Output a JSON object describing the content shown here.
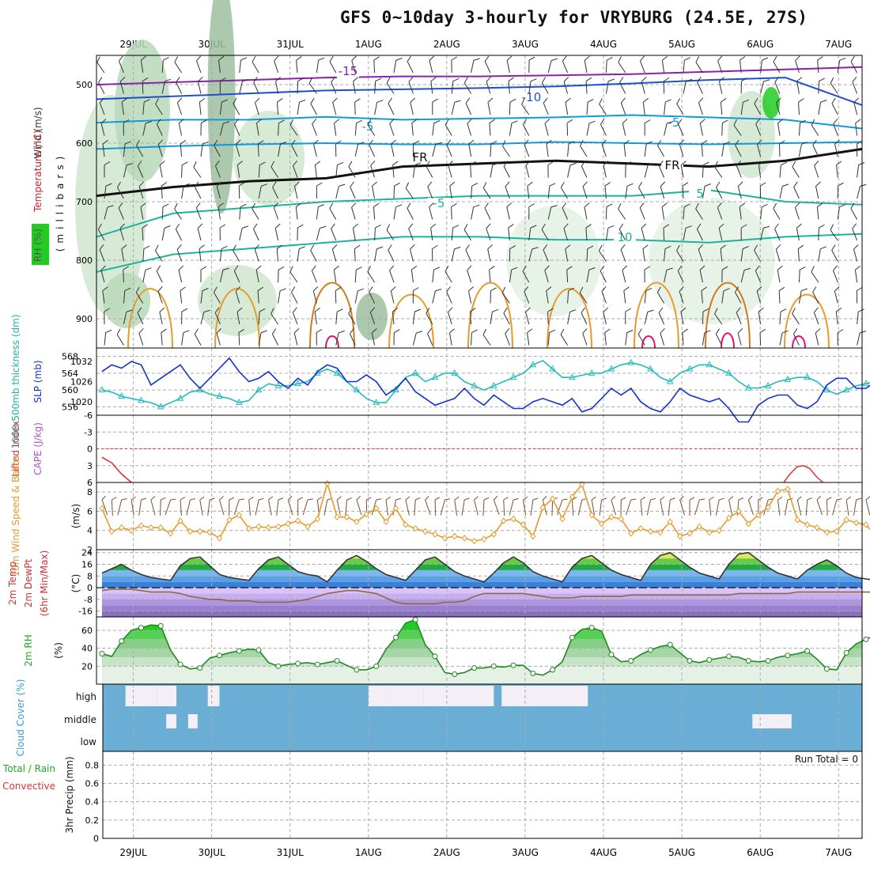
{
  "title": "GFS 0~10day 3-hourly for VRYBURG (24.5E, 27S)",
  "colors": {
    "grid": "#aaaaaa",
    "slp": "#1133cc",
    "thick": "#22bbbb",
    "cape_zero": "#dd3333",
    "wind10": "#e89a2a",
    "barb": "#7a5030",
    "rh2m": "#22aa22",
    "cloud": "#6aaed6",
    "cloud_gap": "#f4eef6",
    "upper_barb": "#333333"
  },
  "chart_data": {
    "dates": [
      "29JUL",
      "30JUL",
      "31JUL",
      "1AUG",
      "2AUG",
      "3AUG",
      "4AUG",
      "5AUG",
      "6AUG",
      "7AUG"
    ],
    "time_range_days": [
      -0.47,
      9.3
    ],
    "panels": [
      {
        "id": "upper_air",
        "type": "contour",
        "ylabel_parts": [
          "Wind (m/s)",
          "Temperature (°C)",
          "RH (%)"
        ],
        "ylabel_colors": [
          "#333333",
          "#cc2222",
          "#22aa22"
        ],
        "yaxis_title": "(millibars)",
        "yticks": [
          500,
          600,
          700,
          800,
          900
        ],
        "ylim": [
          450,
          950
        ],
        "freezing_label": "FR",
        "isotherm_labels": [
          "-15",
          "-10",
          "-5",
          "-5",
          "-5",
          "5",
          "10",
          "FR",
          "FR"
        ],
        "isotherms": [
          {
            "name": "-15",
            "color": "#8822aa",
            "p": [
              500,
              496,
              492,
              488,
              486,
              486,
              484,
              482,
              478,
              474,
              470
            ]
          },
          {
            "name": "-10",
            "color": "#1e4fd0",
            "p": [
              525,
              520,
              515,
              510,
              508,
              506,
              503,
              498,
              492,
              488,
              535
            ]
          },
          {
            "name": "-5",
            "color": "#1199dd",
            "p": [
              565,
              560,
              560,
              555,
              560,
              558,
              556,
              552,
              556,
              560,
              575
            ]
          },
          {
            "name": "-5b",
            "color": "#1199dd",
            "p": [
              610,
              605,
              602,
              600,
              602,
              602,
              598,
              600,
              602,
              600,
              598
            ]
          },
          {
            "name": "FR",
            "color": "#111111",
            "p": [
              690,
              675,
              665,
              660,
              640,
              635,
              630,
              635,
              640,
              630,
              610
            ]
          },
          {
            "name": "5",
            "color": "#1cb3a0",
            "p": [
              760,
              720,
              710,
              700,
              695,
              690,
              690,
              690,
              680,
              700,
              705
            ]
          },
          {
            "name": "10",
            "color": "#1cb3a0",
            "p": [
              820,
              790,
              780,
              770,
              760,
              760,
              765,
              765,
              770,
              760,
              755
            ]
          }
        ]
      },
      {
        "id": "slp_thickness",
        "type": "line",
        "ylabel_left": "1000-500mb thickness (dm)",
        "ylabel_right": "SLP (mb)",
        "yticks_left": [
          556,
          560,
          564,
          568
        ],
        "yticks_right": [
          1020,
          1026,
          1032
        ],
        "ylim_left": [
          554,
          570
        ],
        "ylim_right": [
          1016,
          1036
        ],
        "series": [
          {
            "name": "SLP (mb)",
            "axis": "right",
            "color": "#1133cc",
            "values": [
              1029,
              1031,
              1030,
              1032,
              1031,
              1025,
              1027,
              1029,
              1031,
              1027,
              1024,
              1027,
              1030,
              1033,
              1029,
              1026,
              1027,
              1029,
              1026,
              1024,
              1027,
              1025,
              1029,
              1031,
              1030,
              1026,
              1026,
              1028,
              1026,
              1022,
              1024,
              1027,
              1023,
              1021,
              1019,
              1020,
              1021,
              1024,
              1021,
              1019,
              1022,
              1020,
              1018,
              1018,
              1020,
              1021,
              1020,
              1019,
              1021,
              1017,
              1018,
              1021,
              1024,
              1022,
              1024,
              1020,
              1018,
              1017,
              1020,
              1024,
              1022,
              1021,
              1020,
              1021,
              1018,
              1014,
              1014,
              1019,
              1021,
              1022,
              1022,
              1019,
              1018,
              1020,
              1025,
              1027,
              1027,
              1024,
              1024,
              1026,
              1025
            ]
          },
          {
            "name": "1000-500mb Thickness (dm)",
            "axis": "left",
            "color": "#22bbbb",
            "values": [
              560,
              559.5,
              558.5,
              558,
              557.5,
              557,
              556,
              557,
              558,
              559.5,
              560,
              559,
              558.5,
              558,
              557,
              557.5,
              560,
              561.5,
              561,
              561,
              561.5,
              562,
              564,
              565,
              564,
              562,
              560,
              558,
              557,
              557,
              560,
              563,
              564,
              562,
              563,
              564,
              564,
              562,
              561,
              560,
              561,
              562,
              563,
              564,
              566,
              567,
              565,
              563,
              563,
              563.5,
              564,
              564,
              565,
              566,
              566.5,
              566,
              565,
              563,
              562,
              564,
              565,
              566,
              566,
              565,
              564,
              562,
              560.5,
              560.5,
              561,
              562,
              562.5,
              563,
              563,
              562,
              560,
              559,
              560,
              561,
              561.5,
              562,
              562.5
            ]
          }
        ]
      },
      {
        "id": "lifted_index_cape",
        "type": "line",
        "ylabel_left": "Lifted Index",
        "ylabel_right": "CAPE (J/kg)",
        "yticks": [
          -6,
          -3,
          0,
          3,
          6
        ],
        "ylim": [
          -6,
          6
        ],
        "zero_line": 0,
        "series": [
          {
            "name": "Lifted Index",
            "color": "#cc3333",
            "values": [
              1.5,
              2.5,
              4.5,
              6,
              null,
              null,
              null,
              null,
              null,
              null,
              null,
              null,
              null,
              null,
              null,
              null,
              null,
              null,
              null,
              null,
              null,
              null,
              null,
              null,
              null,
              null,
              null,
              null,
              null,
              null,
              null,
              null,
              null,
              null,
              null,
              null,
              null,
              null,
              null,
              null,
              null,
              null,
              null,
              null,
              null,
              null,
              null,
              null,
              null,
              null,
              null,
              null,
              null,
              null,
              null,
              null,
              null,
              null,
              null,
              null,
              null,
              null,
              null,
              null,
              null,
              null,
              null,
              null,
              null,
              null,
              null,
              null,
              null,
              null,
              null,
              null,
              null,
              null,
              null,
              null,
              null
            ]
          },
          {
            "name": "Lifted Index (6AUG)",
            "color": "#cc3333",
            "points": [
              [
                8.3,
                6
              ],
              [
                8.38,
                4.5
              ],
              [
                8.47,
                3.2
              ],
              [
                8.55,
                3.0
              ],
              [
                8.63,
                3.5
              ],
              [
                8.72,
                5.0
              ],
              [
                8.8,
                6
              ]
            ]
          }
        ]
      },
      {
        "id": "wind10m",
        "type": "line",
        "ylabel_left": "10m Wind Speed & Barbs",
        "ylabel_right": "(m/s)",
        "yticks": [
          2,
          4,
          6,
          8
        ],
        "ylim": [
          2,
          9
        ],
        "series": [
          {
            "name": "10m Wind Speed (m/s)",
            "color": "#e89a2a",
            "values": [
              6.3,
              3.9,
              4.3,
              4.0,
              4.5,
              4.3,
              4.3,
              3.7,
              5.0,
              3.9,
              3.9,
              3.8,
              3.2,
              5.1,
              5.6,
              4.2,
              4.4,
              4.3,
              4.4,
              4.7,
              5.0,
              4.4,
              5.2,
              8.9,
              5.4,
              5.4,
              4.9,
              5.7,
              6.3,
              4.9,
              6.3,
              4.6,
              4.2,
              3.9,
              3.6,
              3.2,
              3.4,
              3.2,
              2.9,
              3.1,
              3.6,
              5.0,
              5.2,
              4.6,
              3.4,
              6.4,
              7.3,
              5.2,
              7.5,
              8.8,
              5.6,
              4.7,
              5.4,
              5.2,
              3.7,
              4.2,
              3.9,
              3.8,
              4.9,
              3.4,
              3.7,
              4.4,
              3.8,
              4.0,
              5.3,
              6.0,
              4.7,
              5.6,
              6.4,
              8.1,
              8.3,
              5.1,
              4.6,
              4.3,
              3.8,
              3.9,
              5.1,
              4.8,
              4.6,
              3.4,
              2.8
            ]
          }
        ]
      },
      {
        "id": "temp2m",
        "type": "area",
        "ylabel_parts": [
          "2m Temp",
          "2m DewPt",
          "(6hr Min/Max)"
        ],
        "ylabel_unit": "(°C)",
        "yticks": [
          -16,
          -8,
          0,
          8,
          16,
          24
        ],
        "ylim": [
          -20,
          26
        ],
        "series": [
          {
            "name": "2m Temp (°C)",
            "color": "#333333",
            "values": [
              10,
              13,
              16,
              12,
              9,
              7,
              6,
              5,
              15,
              20,
              21,
              15,
              9,
              7,
              6,
              5,
              13,
              19,
              21,
              16,
              11,
              9,
              8,
              4,
              12,
              19,
              22,
              18,
              13,
              9,
              7,
              5,
              12,
              19,
              21,
              16,
              11,
              8,
              6,
              4,
              10,
              17,
              21,
              17,
              11,
              8,
              6,
              4,
              14,
              20,
              22,
              17,
              12,
              9,
              7,
              5,
              16,
              22,
              24,
              19,
              14,
              10,
              8,
              6,
              16,
              23,
              24,
              19,
              14,
              10,
              8,
              6,
              12,
              16,
              19,
              15,
              10,
              7,
              6,
              5,
              5
            ]
          },
          {
            "name": "2m DewPt (°C)",
            "color": "#8b6a44",
            "values": [
              -2,
              -1,
              -1,
              -1,
              -2,
              -3,
              -3,
              -3,
              -4,
              -6,
              -7,
              -8,
              -8,
              -9,
              -9,
              -9,
              -10,
              -10,
              -10,
              -10,
              -9,
              -8,
              -6,
              -4,
              -3,
              -2,
              -2,
              -3,
              -4,
              -7,
              -10,
              -11,
              -11,
              -11,
              -11,
              -10,
              -10,
              -9,
              -6,
              -4,
              -4,
              -4,
              -4,
              -4,
              -5,
              -6,
              -7,
              -7,
              -7,
              -6,
              -6,
              -6,
              -6,
              -6,
              -5,
              -5,
              -5,
              -5,
              -5,
              -5,
              -5,
              -5,
              -5,
              -5,
              -5,
              -4,
              -4,
              -4,
              -4,
              -4,
              -4,
              -3,
              -3,
              -3,
              -3,
              -3,
              -3,
              -3,
              -3,
              -3,
              -3
            ]
          }
        ]
      },
      {
        "id": "rh2m",
        "type": "area",
        "ylabel_left": "2m RH",
        "ylabel_right": "(%)",
        "yticks": [
          20,
          40,
          60
        ],
        "ylim": [
          0,
          75
        ],
        "series": [
          {
            "name": "2m RH (%)",
            "color": "#22aa22",
            "values": [
              34,
              31,
              48,
              60,
              63,
              66,
              65,
              38,
              22,
              17,
              18,
              29,
              32,
              35,
              37,
              39,
              38,
              24,
              20,
              22,
              23,
              24,
              22,
              24,
              26,
              21,
              16,
              16,
              20,
              39,
              52,
              68,
              72,
              44,
              31,
              13,
              11,
              13,
              18,
              18,
              20,
              19,
              21,
              21,
              12,
              10,
              16,
              25,
              52,
              61,
              63,
              59,
              33,
              25,
              26,
              33,
              38,
              42,
              44,
              35,
              26,
              24,
              27,
              29,
              31,
              30,
              26,
              25,
              26,
              30,
              32,
              34,
              37,
              28,
              17,
              16,
              35,
              45,
              50,
              55,
              52
            ]
          }
        ]
      },
      {
        "id": "cloud_cover",
        "type": "heatmap",
        "ylabel": "Cloud Cover (%)",
        "levels": [
          "high",
          "middle",
          "low"
        ],
        "blocks": [
          {
            "level": "high",
            "start": -0.1,
            "end": 0.3
          },
          {
            "level": "high",
            "start": 0.3,
            "end": 0.55
          },
          {
            "level": "middle",
            "start": 0.42,
            "end": 0.55
          },
          {
            "level": "middle",
            "start": 0.7,
            "end": 0.82
          },
          {
            "level": "high",
            "start": 0.95,
            "end": 1.1
          },
          {
            "level": "high",
            "start": 3.0,
            "end": 3.3
          },
          {
            "level": "high",
            "start": 3.3,
            "end": 3.7
          },
          {
            "level": "high",
            "start": 3.7,
            "end": 4.6
          },
          {
            "level": "high",
            "start": 4.7,
            "end": 5.8
          },
          {
            "level": "middle",
            "start": 7.9,
            "end": 8.4
          }
        ]
      },
      {
        "id": "precip3hr",
        "type": "bar",
        "ylabel_left": [
          "Total / Rain",
          "Convective"
        ],
        "ylabel_right": "3hr Precip (mm)",
        "yticks": [
          0,
          0.2,
          0.4,
          0.6,
          0.8
        ],
        "ylim": [
          0,
          0.95
        ],
        "run_total_label": "Run Total = 0",
        "values": []
      }
    ]
  }
}
